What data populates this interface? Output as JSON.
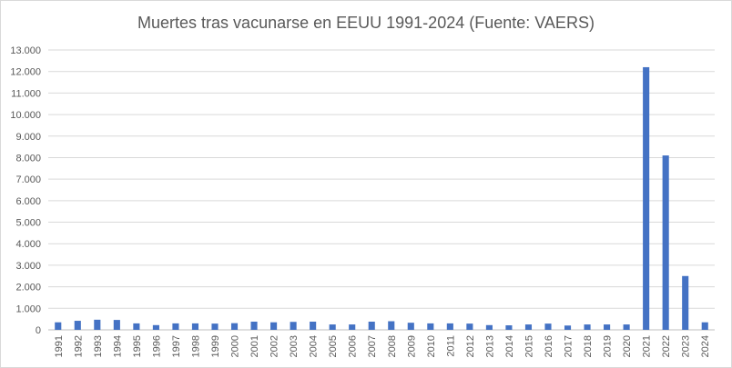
{
  "chart_data": {
    "type": "bar",
    "title": "Muertes tras vacunarse en EEUU 1991-2024 (Fuente: VAERS)",
    "xlabel": "",
    "ylabel": "",
    "ylim": [
      0,
      13000
    ],
    "ytick_step": 1000,
    "y_tick_labels": [
      "0",
      "1.000",
      "2.000",
      "3.000",
      "4.000",
      "5.000",
      "6.000",
      "7.000",
      "8.000",
      "9.000",
      "10.000",
      "11.000",
      "12.000",
      "13.000"
    ],
    "grid": true,
    "legend": "none",
    "bar_color": "#4472c4",
    "categories": [
      "1991",
      "1992",
      "1993",
      "1994",
      "1995",
      "1996",
      "1997",
      "1998",
      "1999",
      "2000",
      "2001",
      "2002",
      "2003",
      "2004",
      "2005",
      "2006",
      "2007",
      "2008",
      "2009",
      "2010",
      "2011",
      "2012",
      "2013",
      "2014",
      "2015",
      "2016",
      "2017",
      "2018",
      "2019",
      "2020",
      "2021",
      "2022",
      "2023",
      "2024"
    ],
    "values": [
      350,
      420,
      470,
      460,
      300,
      220,
      300,
      300,
      290,
      310,
      380,
      350,
      370,
      380,
      250,
      250,
      380,
      400,
      330,
      300,
      300,
      290,
      220,
      210,
      250,
      290,
      200,
      250,
      250,
      250,
      12200,
      8100,
      2500,
      350
    ]
  }
}
